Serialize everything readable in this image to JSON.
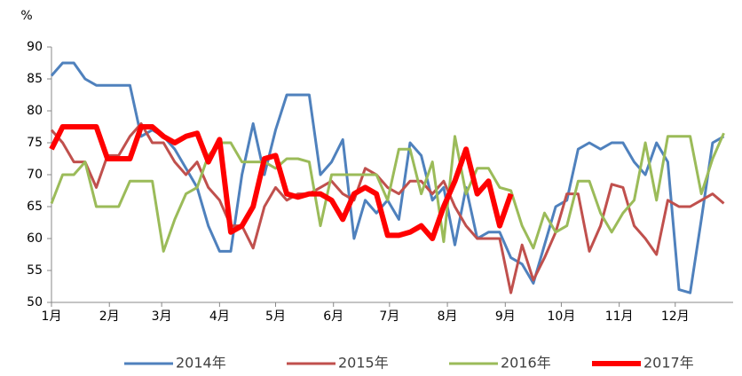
{
  "chart_data": {
    "type": "line",
    "y_label": "%",
    "xlim": [
      1,
      366
    ],
    "xticks": [
      {
        "value": 1,
        "label": "1月"
      },
      {
        "value": 32,
        "label": "2月"
      },
      {
        "value": 60,
        "label": "3月"
      },
      {
        "value": 91,
        "label": "4月"
      },
      {
        "value": 121,
        "label": "5月"
      },
      {
        "value": 152,
        "label": "6月"
      },
      {
        "value": 182,
        "label": "7月"
      },
      {
        "value": 213,
        "label": "8月"
      },
      {
        "value": 244,
        "label": "9月"
      },
      {
        "value": 274,
        "label": "10月"
      },
      {
        "value": 305,
        "label": "11月"
      },
      {
        "value": 335,
        "label": "12月"
      }
    ],
    "ylim": [
      50,
      90
    ],
    "yticks": [
      50,
      55,
      60,
      65,
      70,
      75,
      80,
      85,
      90
    ],
    "grid": false,
    "legend": "bottom",
    "x": [
      1,
      7,
      13,
      19,
      25,
      31,
      37,
      43,
      49,
      55,
      61,
      67,
      73,
      79,
      85,
      91,
      97,
      103,
      109,
      115,
      121,
      127,
      133,
      139,
      145,
      151,
      157,
      163,
      169,
      175,
      181,
      187,
      193,
      199,
      205,
      211,
      217,
      223,
      229,
      235,
      241,
      247,
      253,
      259,
      265,
      271,
      277,
      283,
      289,
      295,
      301,
      307,
      313,
      319,
      325,
      331,
      337,
      343,
      349,
      355,
      361
    ],
    "series": [
      {
        "name": "2014年",
        "color": "#4f81bd",
        "width": 3,
        "values": [
          85.5,
          87.5,
          87.5,
          85,
          84,
          84,
          84,
          84,
          76,
          77,
          76,
          74,
          71,
          68,
          62,
          58,
          58,
          70,
          78,
          70,
          77,
          82.5,
          82.5,
          82.5,
          70,
          72,
          75.5,
          60,
          66,
          64,
          66,
          63,
          75,
          73,
          66,
          68,
          59,
          68,
          60,
          61,
          61,
          57,
          56,
          53,
          59,
          65,
          66,
          74,
          75,
          74,
          75,
          75,
          72,
          70,
          75,
          72,
          52,
          51.5,
          63,
          75,
          76
        ]
      },
      {
        "name": "2015年",
        "color": "#c0504d",
        "width": 3,
        "values": [
          77,
          75,
          72,
          72,
          68,
          73,
          73,
          76,
          78,
          75,
          75,
          72,
          70,
          72,
          68,
          66,
          62,
          62,
          58.5,
          65,
          68,
          66,
          67,
          67,
          68,
          69,
          67,
          66,
          71,
          70,
          68,
          67,
          69,
          69,
          67,
          69,
          65,
          62,
          60,
          60,
          60,
          51.5,
          59,
          53.5,
          57,
          61,
          67,
          67,
          58,
          62,
          68.5,
          68,
          62,
          60,
          57.5,
          66,
          65,
          65,
          66,
          67,
          65.5
        ]
      },
      {
        "name": "2016年",
        "color": "#9bbb59",
        "width": 3,
        "values": [
          65.5,
          70,
          70,
          72,
          65,
          65,
          65,
          69,
          69,
          69,
          58,
          63,
          67,
          68,
          73,
          75,
          75,
          72,
          72,
          72,
          71,
          72.5,
          72.5,
          72,
          62,
          70,
          70,
          70,
          70,
          70,
          66,
          74,
          74,
          67,
          72,
          59.5,
          76,
          67,
          71,
          71,
          68,
          67.5,
          62,
          58.5,
          64,
          61,
          62,
          69,
          69,
          64,
          61,
          64,
          66,
          75,
          66,
          76,
          76,
          76,
          67,
          72.5,
          76.5
        ]
      },
      {
        "name": "2017年",
        "color": "#ff0000",
        "width": 6,
        "values": [
          74,
          77.5,
          77.5,
          77.5,
          77.5,
          72.5,
          72.5,
          72.5,
          77.5,
          77.5,
          76,
          75,
          76,
          76.5,
          72,
          75.5,
          61,
          62,
          65,
          72.5,
          73,
          67,
          66.5,
          67,
          67,
          66,
          63,
          67,
          68,
          67,
          60.5,
          60.5,
          61,
          62,
          60,
          65,
          69,
          74,
          67,
          69,
          62,
          67,
          null,
          null,
          null,
          null,
          null,
          null,
          null,
          null,
          null,
          null,
          null,
          null,
          null,
          null,
          null,
          null,
          null,
          null,
          null
        ]
      }
    ]
  }
}
